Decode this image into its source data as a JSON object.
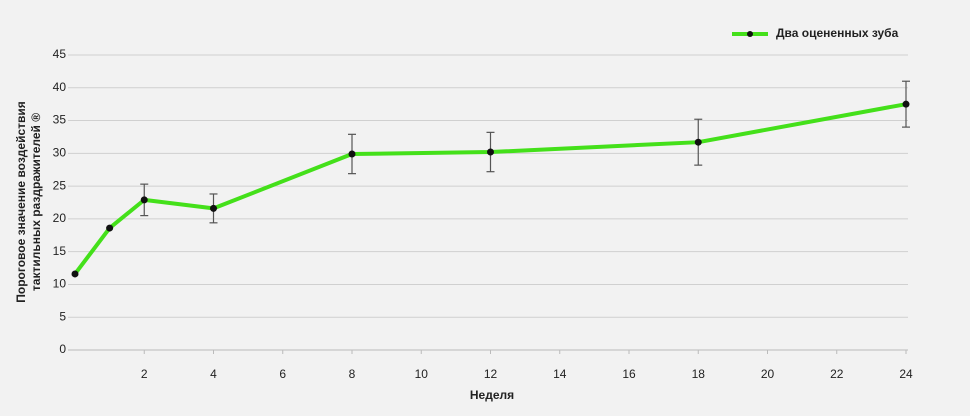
{
  "chart_data": {
    "type": "line",
    "xlabel": "Неделя",
    "ylabel": [
      "Пороговое значение воздействия",
      "тактильных раздражителей ®"
    ],
    "x": [
      0,
      1,
      2,
      4,
      8,
      12,
      18,
      24
    ],
    "series": [
      {
        "name": "Два оцененных зуба",
        "color": "#44e01a",
        "values": [
          11.6,
          18.6,
          22.9,
          21.6,
          29.9,
          30.2,
          31.7,
          37.5
        ],
        "errors": [
          null,
          null,
          2.4,
          2.2,
          3,
          3,
          3.5,
          3.5
        ]
      }
    ],
    "xlim": [
      0,
      24
    ],
    "xticks": [
      2,
      4,
      6,
      8,
      10,
      12,
      14,
      16,
      18,
      20,
      22,
      24
    ],
    "ylim": [
      0,
      45
    ],
    "yticks": [
      0,
      5,
      10,
      15,
      20,
      25,
      30,
      35,
      40,
      45
    ],
    "grid": true,
    "legend": "top-right"
  }
}
